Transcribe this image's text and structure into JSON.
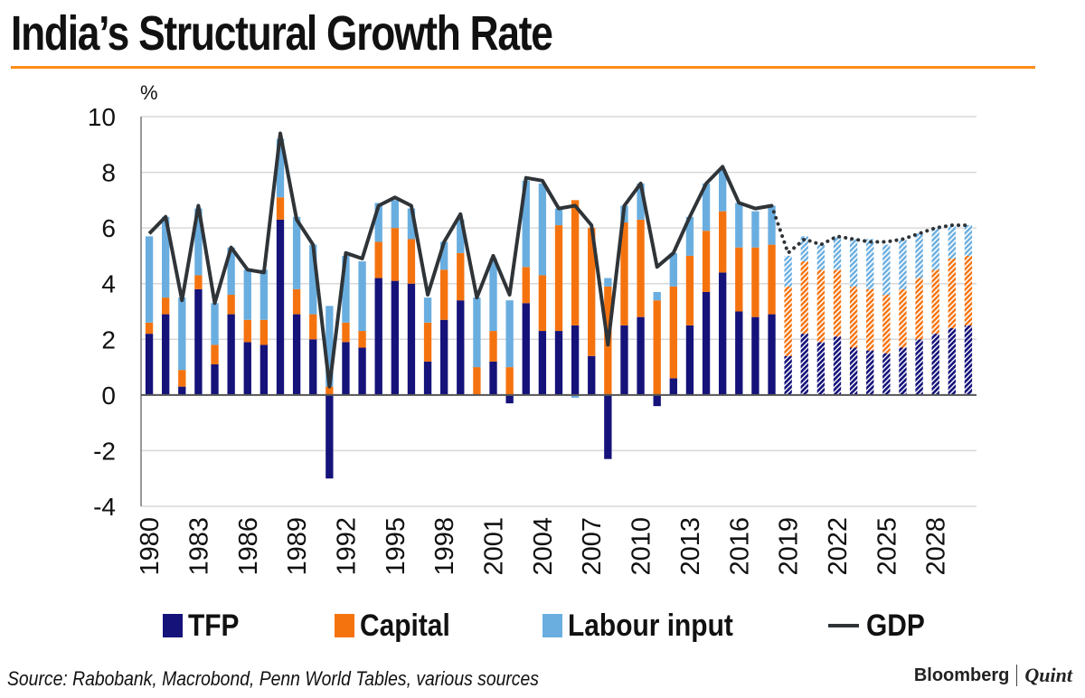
{
  "title": "India’s Structural Growth Rate",
  "source": "Source: Rabobank, Macrobond, Penn World Tables, various sources",
  "brand": {
    "primary": "Bloomberg",
    "secondary": "Quint"
  },
  "colors": {
    "tfp": "#15127a",
    "capital": "#f5730f",
    "labour": "#6aaee0",
    "gdp": "#2f3438",
    "rule": "#ff8c1a",
    "grid": "#d9d9d9"
  },
  "chart_data": {
    "type": "bar",
    "stacked": true,
    "title": "India’s Structural Growth Rate",
    "ylabel": "%",
    "xlabel": "",
    "ylim": [
      -4,
      10
    ],
    "yticks": [
      -4,
      -2,
      0,
      2,
      4,
      6,
      8,
      10
    ],
    "x_tick_labels": [
      "1980",
      "1983",
      "1986",
      "1989",
      "1992",
      "1995",
      "1998",
      "2001",
      "2004",
      "2007",
      "2010",
      "2013",
      "2016",
      "2019",
      "2022",
      "2025",
      "2028"
    ],
    "forecast_from": 2019,
    "legend": [
      "TFP",
      "Capital",
      "Labour input",
      "GDP"
    ],
    "legend_position": "bottom",
    "categories": [
      1980,
      1981,
      1982,
      1983,
      1984,
      1985,
      1986,
      1987,
      1988,
      1989,
      1990,
      1991,
      1992,
      1993,
      1994,
      1995,
      1996,
      1997,
      1998,
      1999,
      2000,
      2001,
      2002,
      2003,
      2004,
      2005,
      2006,
      2007,
      2008,
      2009,
      2010,
      2011,
      2012,
      2013,
      2014,
      2015,
      2016,
      2017,
      2018,
      2019,
      2020,
      2021,
      2022,
      2023,
      2024,
      2025,
      2026,
      2027,
      2028,
      2029,
      2030
    ],
    "series": [
      {
        "name": "TFP",
        "type": "bar",
        "values": [
          2.2,
          2.9,
          0.3,
          3.8,
          1.1,
          2.9,
          1.9,
          1.8,
          6.3,
          2.9,
          2.0,
          -3.0,
          1.9,
          1.7,
          4.2,
          4.1,
          4.0,
          1.2,
          2.7,
          3.4,
          0.0,
          1.2,
          -0.3,
          3.3,
          2.3,
          2.3,
          2.5,
          1.4,
          -2.3,
          2.5,
          2.8,
          -0.4,
          0.6,
          2.5,
          3.7,
          4.4,
          3.0,
          2.8,
          2.9,
          1.4,
          2.2,
          1.9,
          2.1,
          1.7,
          1.6,
          1.5,
          1.7,
          2.0,
          2.2,
          2.4,
          2.5
        ]
      },
      {
        "name": "Capital",
        "type": "bar",
        "values": [
          0.4,
          0.6,
          0.6,
          0.5,
          0.7,
          0.7,
          0.8,
          0.9,
          0.8,
          0.9,
          0.9,
          0.3,
          0.7,
          0.6,
          1.3,
          1.9,
          1.6,
          1.4,
          1.8,
          1.7,
          1.0,
          1.1,
          1.0,
          1.3,
          2.0,
          3.8,
          4.5,
          4.6,
          3.9,
          3.7,
          3.5,
          3.4,
          3.3,
          2.5,
          2.2,
          2.2,
          2.3,
          2.5,
          2.5,
          2.5,
          2.6,
          2.6,
          2.4,
          2.2,
          2.2,
          2.1,
          2.1,
          2.2,
          2.3,
          2.5,
          2.5
        ]
      },
      {
        "name": "Labour input",
        "type": "bar",
        "values": [
          3.1,
          2.9,
          2.6,
          2.4,
          1.5,
          1.7,
          1.8,
          1.8,
          2.1,
          2.6,
          2.5,
          2.9,
          2.4,
          2.5,
          1.4,
          1.0,
          1.1,
          0.9,
          1.0,
          1.2,
          2.5,
          2.6,
          2.4,
          3.1,
          3.3,
          0.6,
          -0.1,
          0.0,
          0.3,
          0.6,
          1.3,
          0.3,
          1.2,
          1.4,
          1.7,
          1.5,
          1.6,
          1.3,
          1.4,
          1.1,
          0.9,
          0.9,
          1.2,
          1.7,
          1.8,
          1.8,
          1.8,
          1.6,
          1.5,
          1.2,
          1.1
        ]
      },
      {
        "name": "GDP",
        "type": "line",
        "values": [
          5.8,
          6.4,
          3.4,
          6.8,
          3.3,
          5.3,
          4.5,
          4.4,
          9.4,
          6.3,
          5.4,
          0.3,
          5.1,
          4.9,
          6.8,
          7.1,
          6.8,
          3.6,
          5.5,
          6.5,
          3.5,
          5.0,
          3.6,
          7.8,
          7.7,
          6.7,
          6.8,
          6.1,
          1.8,
          6.8,
          7.6,
          4.6,
          5.1,
          6.4,
          7.6,
          8.2,
          6.9,
          6.7,
          6.8,
          5.1,
          5.6,
          5.4,
          5.7,
          5.6,
          5.5,
          5.5,
          5.6,
          5.8,
          6.0,
          6.1,
          6.1
        ]
      }
    ]
  }
}
